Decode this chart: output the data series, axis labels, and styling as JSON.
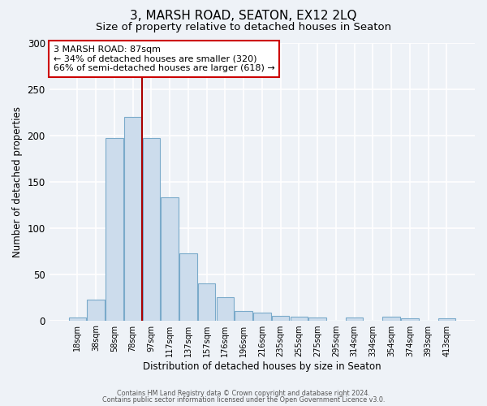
{
  "title": "3, MARSH ROAD, SEATON, EX12 2LQ",
  "subtitle": "Size of property relative to detached houses in Seaton",
  "xlabel": "Distribution of detached houses by size in Seaton",
  "ylabel": "Number of detached properties",
  "bin_labels": [
    "18sqm",
    "38sqm",
    "58sqm",
    "78sqm",
    "97sqm",
    "117sqm",
    "137sqm",
    "157sqm",
    "176sqm",
    "196sqm",
    "216sqm",
    "235sqm",
    "255sqm",
    "275sqm",
    "295sqm",
    "314sqm",
    "334sqm",
    "354sqm",
    "374sqm",
    "393sqm",
    "413sqm"
  ],
  "values": [
    3,
    22,
    197,
    220,
    197,
    133,
    72,
    40,
    25,
    10,
    8,
    5,
    4,
    3,
    0,
    3,
    0,
    4,
    2,
    0,
    2
  ],
  "bar_color": "#ccdcec",
  "bar_edge_color": "#7aaaca",
  "property_line_x": 4,
  "annotation_text": "3 MARSH ROAD: 87sqm\n← 34% of detached houses are smaller (320)\n66% of semi-detached houses are larger (618) →",
  "annotation_box_color": "white",
  "annotation_box_edge_color": "#cc0000",
  "vline_color": "#aa0000",
  "ylim": [
    0,
    300
  ],
  "yticks": [
    0,
    50,
    100,
    150,
    200,
    250,
    300
  ],
  "background_color": "#eef2f7",
  "grid_color": "white",
  "footer_line1": "Contains HM Land Registry data © Crown copyright and database right 2024.",
  "footer_line2": "Contains public sector information licensed under the Open Government Licence v3.0."
}
